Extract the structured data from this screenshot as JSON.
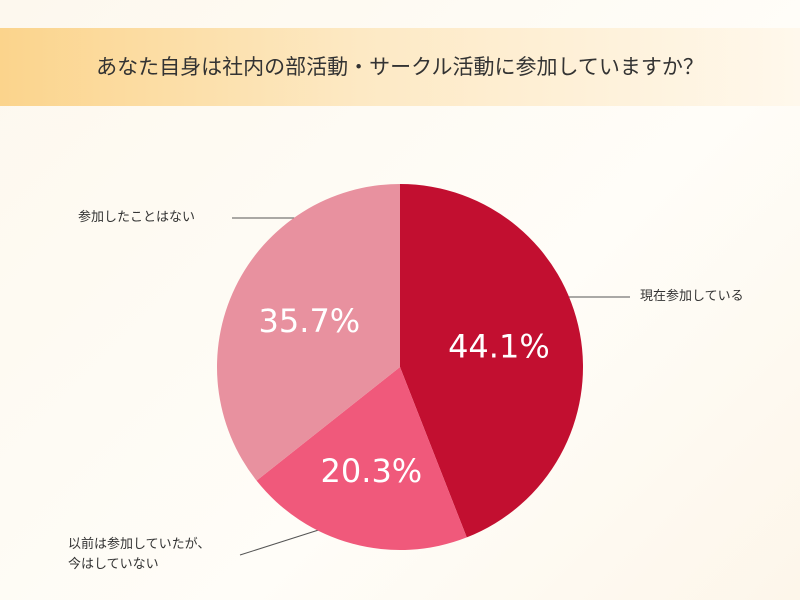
{
  "chart_data": {
    "type": "pie",
    "title": "あなた自身は社内の部活動・サークル活動に参加していますか？",
    "categories": [
      "現在参加している",
      "以前は参加していたが、\n今はしていない",
      "参加したことはない"
    ],
    "values": [
      44.1,
      20.3,
      35.7
    ],
    "value_labels": [
      "44.1%",
      "20.3%",
      "35.7%"
    ],
    "colors": [
      "#c20f30",
      "#f0597b",
      "#e8919f"
    ]
  }
}
